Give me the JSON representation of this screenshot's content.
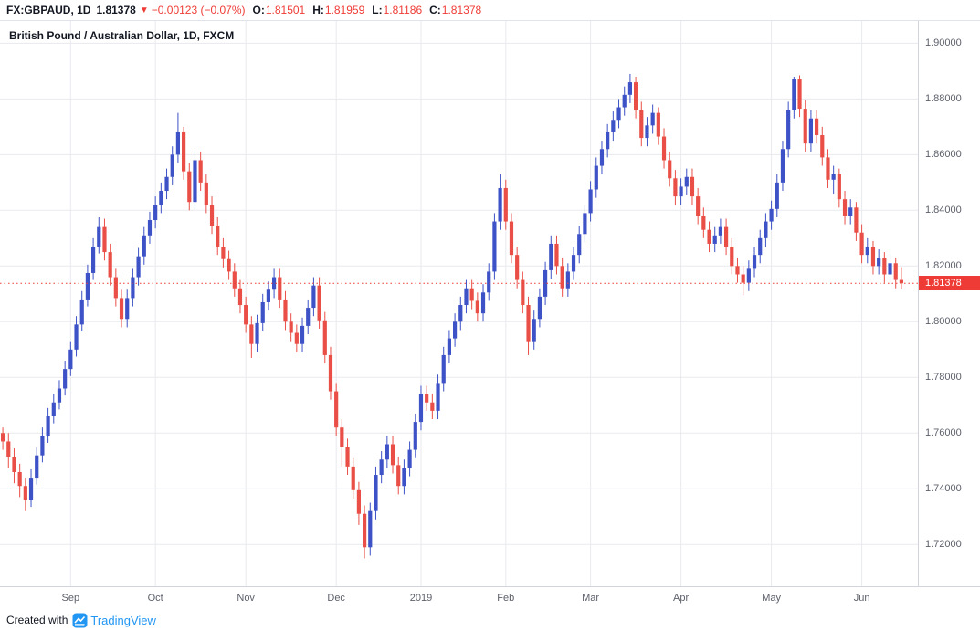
{
  "header": {
    "symbol": "FX:GBPAUD, 1D",
    "last_price": "1.81378",
    "direction_arrow": "▼",
    "change": "−0.00123 (−0.07%)",
    "open_label": "O:",
    "open": "1.81501",
    "high_label": "H:",
    "high": "1.81959",
    "low_label": "L:",
    "low": "1.81186",
    "close_label": "C:",
    "close": "1.81378"
  },
  "chart": {
    "watermark_title": "British Pound / Australian Dollar, 1D, FXCM",
    "price_tag": "1.81378",
    "colors": {
      "up": "#3d52c6",
      "down": "#ea4f47",
      "red": "#ef3b35",
      "grid": "#e9eaee",
      "axis_text": "#5d606b",
      "brand": "#2196f3"
    }
  },
  "footer": {
    "created_with": "Created with",
    "brand": "TradingView"
  },
  "chart_data": {
    "type": "candlestick",
    "symbol": "FX:GBPAUD",
    "timeframe": "1D",
    "exchange": "FXCM",
    "title": "British Pound / Australian Dollar, 1D, FXCM",
    "last_price": 1.81378,
    "y_domain": [
      1.705,
      1.908
    ],
    "y_ticks": [
      "1.90000",
      "1.88000",
      "1.86000",
      "1.84000",
      "1.82000",
      "1.80000",
      "1.78000",
      "1.76000",
      "1.74000",
      "1.72000"
    ],
    "x_ticks": [
      {
        "label": "Sep",
        "index": 12
      },
      {
        "label": "Oct",
        "index": 27
      },
      {
        "label": "Nov",
        "index": 43
      },
      {
        "label": "Dec",
        "index": 59
      },
      {
        "label": "2019",
        "index": 74
      },
      {
        "label": "Feb",
        "index": 89
      },
      {
        "label": "Mar",
        "index": 104
      },
      {
        "label": "Apr",
        "index": 120
      },
      {
        "label": "May",
        "index": 136
      },
      {
        "label": "Jun",
        "index": 152
      }
    ],
    "candles": [
      [
        1.76,
        1.762,
        1.754,
        1.757
      ],
      [
        1.757,
        1.76,
        1.7475,
        1.7515
      ],
      [
        1.7515,
        1.7545,
        1.742,
        1.746
      ],
      [
        1.746,
        1.749,
        1.737,
        1.741
      ],
      [
        1.741,
        1.744,
        1.732,
        1.736
      ],
      [
        1.736,
        1.747,
        1.7335,
        1.744
      ],
      [
        1.744,
        1.755,
        1.7415,
        1.752
      ],
      [
        1.752,
        1.762,
        1.7495,
        1.759
      ],
      [
        1.759,
        1.769,
        1.7565,
        1.766
      ],
      [
        1.766,
        1.774,
        1.7635,
        1.771
      ],
      [
        1.771,
        1.779,
        1.7685,
        1.776
      ],
      [
        1.776,
        1.786,
        1.7735,
        1.783
      ],
      [
        1.783,
        1.793,
        1.7805,
        1.79
      ],
      [
        1.79,
        1.802,
        1.7875,
        1.799
      ],
      [
        1.799,
        1.811,
        1.7965,
        1.808
      ],
      [
        1.808,
        1.8205,
        1.8055,
        1.8175
      ],
      [
        1.8175,
        1.83,
        1.815,
        1.827
      ],
      [
        1.827,
        1.8375,
        1.8245,
        1.834
      ],
      [
        1.834,
        1.837,
        1.822,
        1.825
      ],
      [
        1.825,
        1.828,
        1.813,
        1.816
      ],
      [
        1.816,
        1.819,
        1.8055,
        1.8085
      ],
      [
        1.8085,
        1.8115,
        1.798,
        1.801
      ],
      [
        1.801,
        1.8115,
        1.798,
        1.8085
      ],
      [
        1.8085,
        1.819,
        1.8055,
        1.816
      ],
      [
        1.816,
        1.8265,
        1.813,
        1.8235
      ],
      [
        1.8235,
        1.834,
        1.8205,
        1.831
      ],
      [
        1.831,
        1.8395,
        1.828,
        1.8365
      ],
      [
        1.8365,
        1.845,
        1.8335,
        1.842
      ],
      [
        1.842,
        1.85,
        1.839,
        1.847
      ],
      [
        1.847,
        1.855,
        1.844,
        1.852
      ],
      [
        1.852,
        1.863,
        1.849,
        1.86
      ],
      [
        1.86,
        1.875,
        1.857,
        1.868
      ],
      [
        1.868,
        1.87,
        1.851,
        1.854
      ],
      [
        1.854,
        1.857,
        1.84,
        1.843
      ],
      [
        1.843,
        1.861,
        1.84,
        1.858
      ],
      [
        1.858,
        1.861,
        1.847,
        1.85
      ],
      [
        1.85,
        1.853,
        1.839,
        1.842
      ],
      [
        1.842,
        1.845,
        1.8315,
        1.8345
      ],
      [
        1.8345,
        1.8375,
        1.824,
        1.827
      ],
      [
        1.827,
        1.83,
        1.8195,
        1.8225
      ],
      [
        1.8225,
        1.8255,
        1.815,
        1.818
      ],
      [
        1.818,
        1.821,
        1.809,
        1.812
      ],
      [
        1.812,
        1.815,
        1.803,
        1.806
      ],
      [
        1.806,
        1.809,
        1.796,
        1.799
      ],
      [
        1.799,
        1.802,
        1.787,
        1.792
      ],
      [
        1.792,
        1.8025,
        1.789,
        1.7995
      ],
      [
        1.7995,
        1.81,
        1.7965,
        1.807
      ],
      [
        1.807,
        1.8145,
        1.804,
        1.8115
      ],
      [
        1.8115,
        1.819,
        1.8085,
        1.816
      ],
      [
        1.816,
        1.819,
        1.805,
        1.808
      ],
      [
        1.808,
        1.811,
        1.797,
        1.8
      ],
      [
        1.8,
        1.803,
        1.793,
        1.796
      ],
      [
        1.796,
        1.799,
        1.789,
        1.792
      ],
      [
        1.792,
        1.8015,
        1.789,
        1.7985
      ],
      [
        1.7985,
        1.808,
        1.7955,
        1.805
      ],
      [
        1.805,
        1.816,
        1.802,
        1.813
      ],
      [
        1.813,
        1.816,
        1.7975,
        1.8005
      ],
      [
        1.8005,
        1.8035,
        1.785,
        1.788
      ],
      [
        1.788,
        1.791,
        1.772,
        1.775
      ],
      [
        1.775,
        1.778,
        1.759,
        1.762
      ],
      [
        1.762,
        1.765,
        1.748,
        1.755
      ],
      [
        1.755,
        1.758,
        1.745,
        1.748
      ],
      [
        1.748,
        1.751,
        1.7365,
        1.7395
      ],
      [
        1.7395,
        1.7425,
        1.727,
        1.731
      ],
      [
        1.731,
        1.734,
        1.715,
        1.719
      ],
      [
        1.719,
        1.735,
        1.716,
        1.732
      ],
      [
        1.732,
        1.748,
        1.729,
        1.745
      ],
      [
        1.745,
        1.7535,
        1.742,
        1.7505
      ],
      [
        1.7505,
        1.759,
        1.7475,
        1.756
      ],
      [
        1.756,
        1.759,
        1.7455,
        1.7485
      ],
      [
        1.7485,
        1.7515,
        1.738,
        1.741
      ],
      [
        1.741,
        1.7505,
        1.738,
        1.7475
      ],
      [
        1.7475,
        1.757,
        1.7445,
        1.754
      ],
      [
        1.754,
        1.767,
        1.751,
        1.764
      ],
      [
        1.764,
        1.777,
        1.761,
        1.774
      ],
      [
        1.774,
        1.777,
        1.768,
        1.771
      ],
      [
        1.771,
        1.774,
        1.765,
        1.768
      ],
      [
        1.768,
        1.781,
        1.765,
        1.778
      ],
      [
        1.778,
        1.791,
        1.775,
        1.788
      ],
      [
        1.788,
        1.797,
        1.785,
        1.794
      ],
      [
        1.794,
        1.803,
        1.791,
        1.8
      ],
      [
        1.8,
        1.809,
        1.797,
        1.806
      ],
      [
        1.806,
        1.815,
        1.803,
        1.812
      ],
      [
        1.812,
        1.815,
        1.8045,
        1.8075
      ],
      [
        1.8075,
        1.8105,
        1.8,
        1.803
      ],
      [
        1.803,
        1.8135,
        1.8,
        1.8105
      ],
      [
        1.8105,
        1.821,
        1.8075,
        1.818
      ],
      [
        1.818,
        1.839,
        1.815,
        1.836
      ],
      [
        1.836,
        1.853,
        1.833,
        1.848
      ],
      [
        1.848,
        1.851,
        1.833,
        1.836
      ],
      [
        1.836,
        1.839,
        1.821,
        1.824
      ],
      [
        1.824,
        1.827,
        1.812,
        1.815
      ],
      [
        1.815,
        1.818,
        1.803,
        1.806
      ],
      [
        1.806,
        1.809,
        1.788,
        1.793
      ],
      [
        1.793,
        1.804,
        1.79,
        1.801
      ],
      [
        1.801,
        1.812,
        1.798,
        1.809
      ],
      [
        1.809,
        1.8215,
        1.806,
        1.8185
      ],
      [
        1.8185,
        1.831,
        1.8155,
        1.828
      ],
      [
        1.828,
        1.831,
        1.817,
        1.82
      ],
      [
        1.82,
        1.823,
        1.809,
        1.812
      ],
      [
        1.812,
        1.821,
        1.809,
        1.818
      ],
      [
        1.818,
        1.827,
        1.815,
        1.824
      ],
      [
        1.824,
        1.8345,
        1.821,
        1.8315
      ],
      [
        1.8315,
        1.842,
        1.8285,
        1.839
      ],
      [
        1.839,
        1.8505,
        1.836,
        1.8475
      ],
      [
        1.8475,
        1.859,
        1.8445,
        1.856
      ],
      [
        1.856,
        1.865,
        1.853,
        1.862
      ],
      [
        1.862,
        1.871,
        1.859,
        1.868
      ],
      [
        1.868,
        1.8755,
        1.865,
        1.8725
      ],
      [
        1.8725,
        1.88,
        1.8695,
        1.877
      ],
      [
        1.877,
        1.8845,
        1.874,
        1.8815
      ],
      [
        1.8815,
        1.889,
        1.8785,
        1.886
      ],
      [
        1.886,
        1.888,
        1.873,
        1.876
      ],
      [
        1.876,
        1.879,
        1.863,
        1.866
      ],
      [
        1.866,
        1.8735,
        1.863,
        1.8705
      ],
      [
        1.8705,
        1.878,
        1.8675,
        1.875
      ],
      [
        1.875,
        1.877,
        1.8635,
        1.8665
      ],
      [
        1.8665,
        1.8695,
        1.855,
        1.858
      ],
      [
        1.858,
        1.861,
        1.8485,
        1.8515
      ],
      [
        1.8515,
        1.8545,
        1.842,
        1.845
      ],
      [
        1.845,
        1.8515,
        1.842,
        1.8485
      ],
      [
        1.8485,
        1.855,
        1.8455,
        1.852
      ],
      [
        1.852,
        1.855,
        1.842,
        1.845
      ],
      [
        1.845,
        1.848,
        1.835,
        1.838
      ],
      [
        1.838,
        1.841,
        1.83,
        1.833
      ],
      [
        1.833,
        1.836,
        1.825,
        1.828
      ],
      [
        1.828,
        1.834,
        1.825,
        1.831
      ],
      [
        1.831,
        1.837,
        1.828,
        1.834
      ],
      [
        1.834,
        1.837,
        1.824,
        1.827
      ],
      [
        1.827,
        1.83,
        1.817,
        1.82
      ],
      [
        1.82,
        1.823,
        1.814,
        1.817
      ],
      [
        1.817,
        1.82,
        1.8095,
        1.814
      ],
      [
        1.814,
        1.822,
        1.811,
        1.819
      ],
      [
        1.819,
        1.827,
        1.816,
        1.824
      ],
      [
        1.824,
        1.833,
        1.821,
        1.83
      ],
      [
        1.83,
        1.839,
        1.827,
        1.836
      ],
      [
        1.836,
        1.8435,
        1.833,
        1.8405
      ],
      [
        1.8405,
        1.853,
        1.8375,
        1.85
      ],
      [
        1.85,
        1.865,
        1.847,
        1.862
      ],
      [
        1.862,
        1.879,
        1.859,
        1.876
      ],
      [
        1.876,
        1.888,
        1.873,
        1.887
      ],
      [
        1.887,
        1.8885,
        1.8735,
        1.8765
      ],
      [
        1.8765,
        1.8795,
        1.861,
        1.864
      ],
      [
        1.864,
        1.876,
        1.861,
        1.873
      ],
      [
        1.873,
        1.876,
        1.864,
        1.867
      ],
      [
        1.867,
        1.87,
        1.856,
        1.859
      ],
      [
        1.859,
        1.862,
        1.848,
        1.851
      ],
      [
        1.851,
        1.856,
        1.846,
        1.853
      ],
      [
        1.853,
        1.855,
        1.841,
        1.844
      ],
      [
        1.844,
        1.847,
        1.835,
        1.838
      ],
      [
        1.838,
        1.844,
        1.835,
        1.841
      ],
      [
        1.841,
        1.843,
        1.829,
        1.832
      ],
      [
        1.832,
        1.835,
        1.821,
        1.824
      ],
      [
        1.824,
        1.83,
        1.821,
        1.827
      ],
      [
        1.827,
        1.829,
        1.817,
        1.82
      ],
      [
        1.82,
        1.826,
        1.817,
        1.823
      ],
      [
        1.823,
        1.825,
        1.814,
        1.817
      ],
      [
        1.817,
        1.824,
        1.814,
        1.821
      ],
      [
        1.821,
        1.823,
        1.812,
        1.815
      ],
      [
        1.815,
        1.8196,
        1.8119,
        1.8138
      ]
    ]
  }
}
